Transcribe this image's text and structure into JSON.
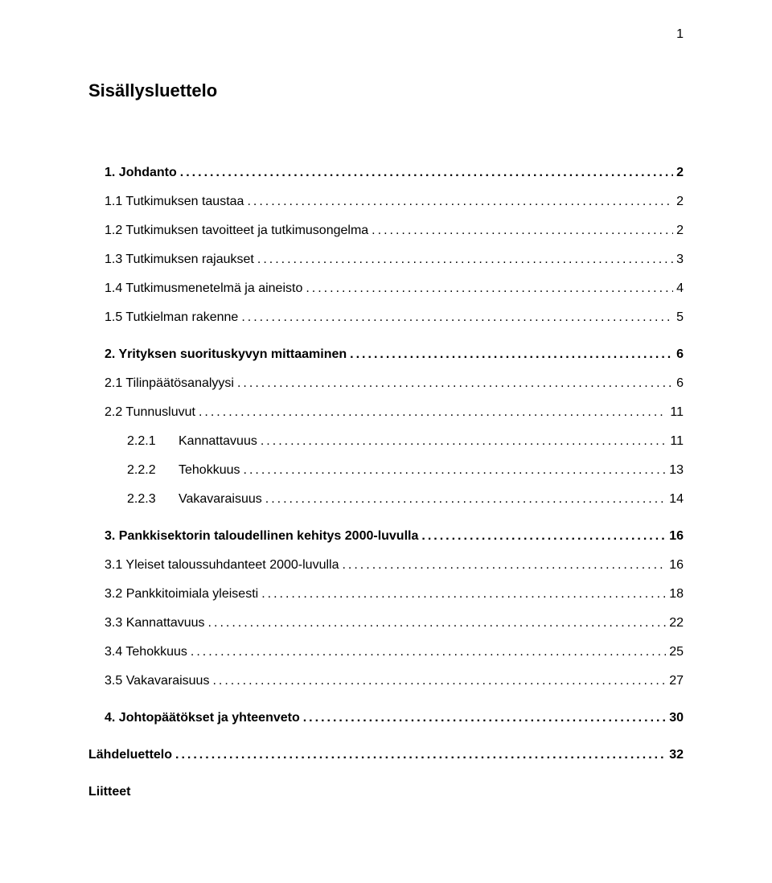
{
  "pageNumber": "1",
  "title": "Sisällysluettelo",
  "entries": [
    {
      "level": 1,
      "label": "1.   Johdanto",
      "page": "2"
    },
    {
      "level": 2,
      "label": "1.1 Tutkimuksen taustaa",
      "page": "2"
    },
    {
      "level": 2,
      "label": "1.2 Tutkimuksen tavoitteet ja tutkimusongelma",
      "page": "2"
    },
    {
      "level": 2,
      "label": "1.3 Tutkimuksen rajaukset",
      "page": "3"
    },
    {
      "level": 2,
      "label": "1.4 Tutkimusmenetelmä ja aineisto",
      "page": "4"
    },
    {
      "level": 2,
      "label": "1.5 Tutkielman rakenne",
      "page": "5"
    },
    {
      "level": 1,
      "label": "2.   Yrityksen suorituskyvyn mittaaminen",
      "page": "6"
    },
    {
      "level": 2,
      "label": "2.1 Tilinpäätösanalyysi",
      "page": "6"
    },
    {
      "level": 2,
      "label": "2.2 Tunnusluvut",
      "page": "11"
    },
    {
      "level": 3,
      "num": "2.2.1",
      "text": "Kannattavuus",
      "page": "11"
    },
    {
      "level": 3,
      "num": "2.2.2",
      "text": "Tehokkuus",
      "page": "13"
    },
    {
      "level": 3,
      "num": "2.2.3",
      "text": "Vakavaraisuus",
      "page": "14"
    },
    {
      "level": 1,
      "label": "3.   Pankkisektorin taloudellinen kehitys 2000-luvulla",
      "page": "16"
    },
    {
      "level": 2,
      "label": "3.1 Yleiset taloussuhdanteet 2000-luvulla",
      "page": "16"
    },
    {
      "level": 2,
      "label": "3.2 Pankkitoimiala yleisesti",
      "page": "18"
    },
    {
      "level": 2,
      "label": "3.3 Kannattavuus",
      "page": "22"
    },
    {
      "level": 2,
      "label": "3.4 Tehokkuus",
      "page": "25"
    },
    {
      "level": 2,
      "label": "3.5 Vakavaraisuus",
      "page": "27"
    },
    {
      "level": 1,
      "label": "4.   Johtopäätökset ja yhteenveto",
      "page": "30"
    }
  ],
  "standalone": [
    {
      "label": "Lähdeluettelo",
      "page": "32",
      "hasPage": true
    },
    {
      "label": "Liitteet",
      "hasPage": false
    }
  ]
}
